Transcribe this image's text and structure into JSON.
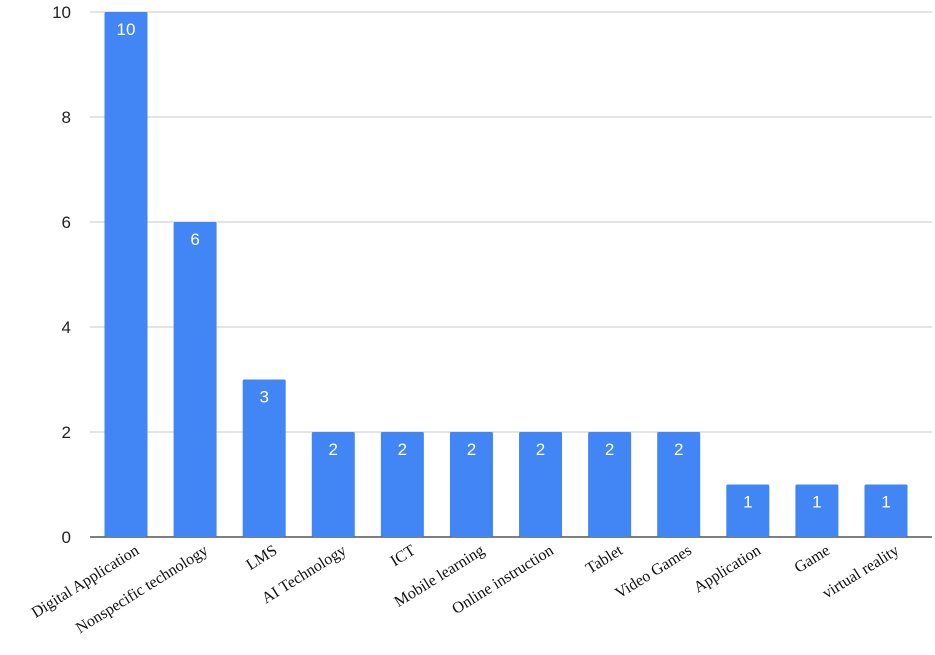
{
  "chart_data": {
    "type": "bar",
    "categories": [
      "Digital Application",
      "Nonspecific technology",
      "LMS",
      "AI Technology",
      "ICT",
      "Mobile learning",
      "Online instruction",
      "Tablet",
      "Video Games",
      "Application",
      "Game",
      "virtual reality"
    ],
    "values": [
      10,
      6,
      3,
      2,
      2,
      2,
      2,
      2,
      2,
      1,
      1,
      1
    ],
    "data_labels": [
      "10",
      "6",
      "3",
      "2",
      "2",
      "2",
      "2",
      "2",
      "2",
      "1",
      "1",
      "1"
    ],
    "ylim": [
      0,
      10
    ],
    "yticks": [
      0,
      2,
      4,
      6,
      8,
      10
    ],
    "title": "",
    "xlabel": "",
    "ylabel": "",
    "grid": true,
    "legend": "none",
    "colors": {
      "bar": "#4285f4",
      "bar_label": "#ffffff",
      "grid": "#c8c8c8"
    }
  }
}
